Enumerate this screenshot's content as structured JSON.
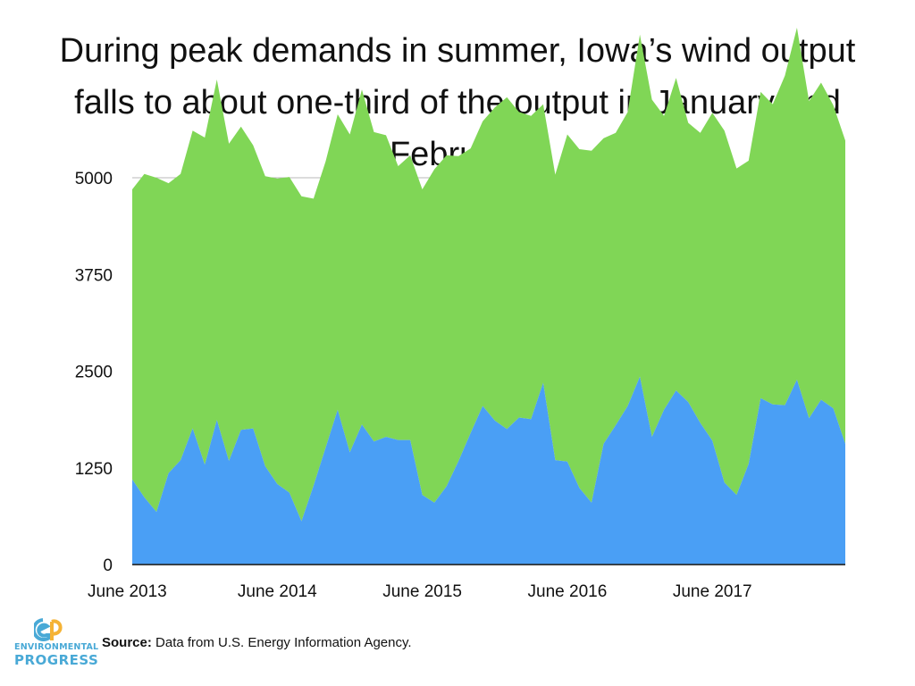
{
  "chart_data": {
    "type": "area",
    "title": "During peak demands in summer, Iowa’s wind output falls to about one-third of the output in January and February",
    "ylim": [
      0,
      5000
    ],
    "yticks": [
      "0",
      "1250",
      "2500",
      "3750",
      "5000"
    ],
    "x_tick_labels": [
      "June 2013",
      "June 2014",
      "June 2015",
      "June 2016",
      "June 2017"
    ],
    "x_tick_index": [
      0,
      12,
      24,
      36,
      48
    ],
    "x_count": 60,
    "grid": true,
    "series": [
      {
        "values": [
          1100,
          870,
          680,
          1180,
          1350,
          1760,
          1290,
          1870,
          1340,
          1740,
          1760,
          1270,
          1040,
          930,
          560,
          1020,
          1510,
          2000,
          1450,
          1810,
          1590,
          1650,
          1610,
          1610,
          900,
          800,
          1010,
          1340,
          1700,
          2050,
          1860,
          1750,
          1900,
          1880,
          2350,
          1350,
          1330,
          990,
          800,
          1560,
          1800,
          2050,
          2430,
          1650,
          2000,
          2250,
          2100,
          1830,
          1600,
          1060,
          900,
          1300,
          2150,
          2070,
          2060,
          2390,
          1890,
          2130,
          2020,
          1560
        ],
        "color": "#4a9ff5"
      },
      {
        "values": [
          3750,
          4180,
          4320,
          3750,
          3700,
          3850,
          4230,
          4400,
          4100,
          3920,
          3660,
          3750,
          3950,
          4080,
          4200,
          3710,
          3700,
          3820,
          4110,
          4330,
          4000,
          3900,
          3540,
          3680,
          3950,
          4310,
          4280,
          3940,
          3680,
          3680,
          4050,
          4290,
          3950,
          3920,
          3600,
          3690,
          4230,
          4380,
          4550,
          3950,
          3780,
          3800,
          4420,
          4360,
          3800,
          4040,
          3610,
          3750,
          4240,
          4550,
          4220,
          3920,
          3960,
          3880,
          4260,
          4550,
          4100,
          4100,
          3920,
          3920
        ],
        "color": "#80d656"
      }
    ]
  },
  "source": {
    "label": "Source:",
    "text": " Data from U.S. Energy Information Agency."
  },
  "logo": {
    "line1": "ENVIRONMENTAL",
    "line2": "PROGRESS"
  },
  "colors": {
    "accent": "#49a9d6"
  }
}
